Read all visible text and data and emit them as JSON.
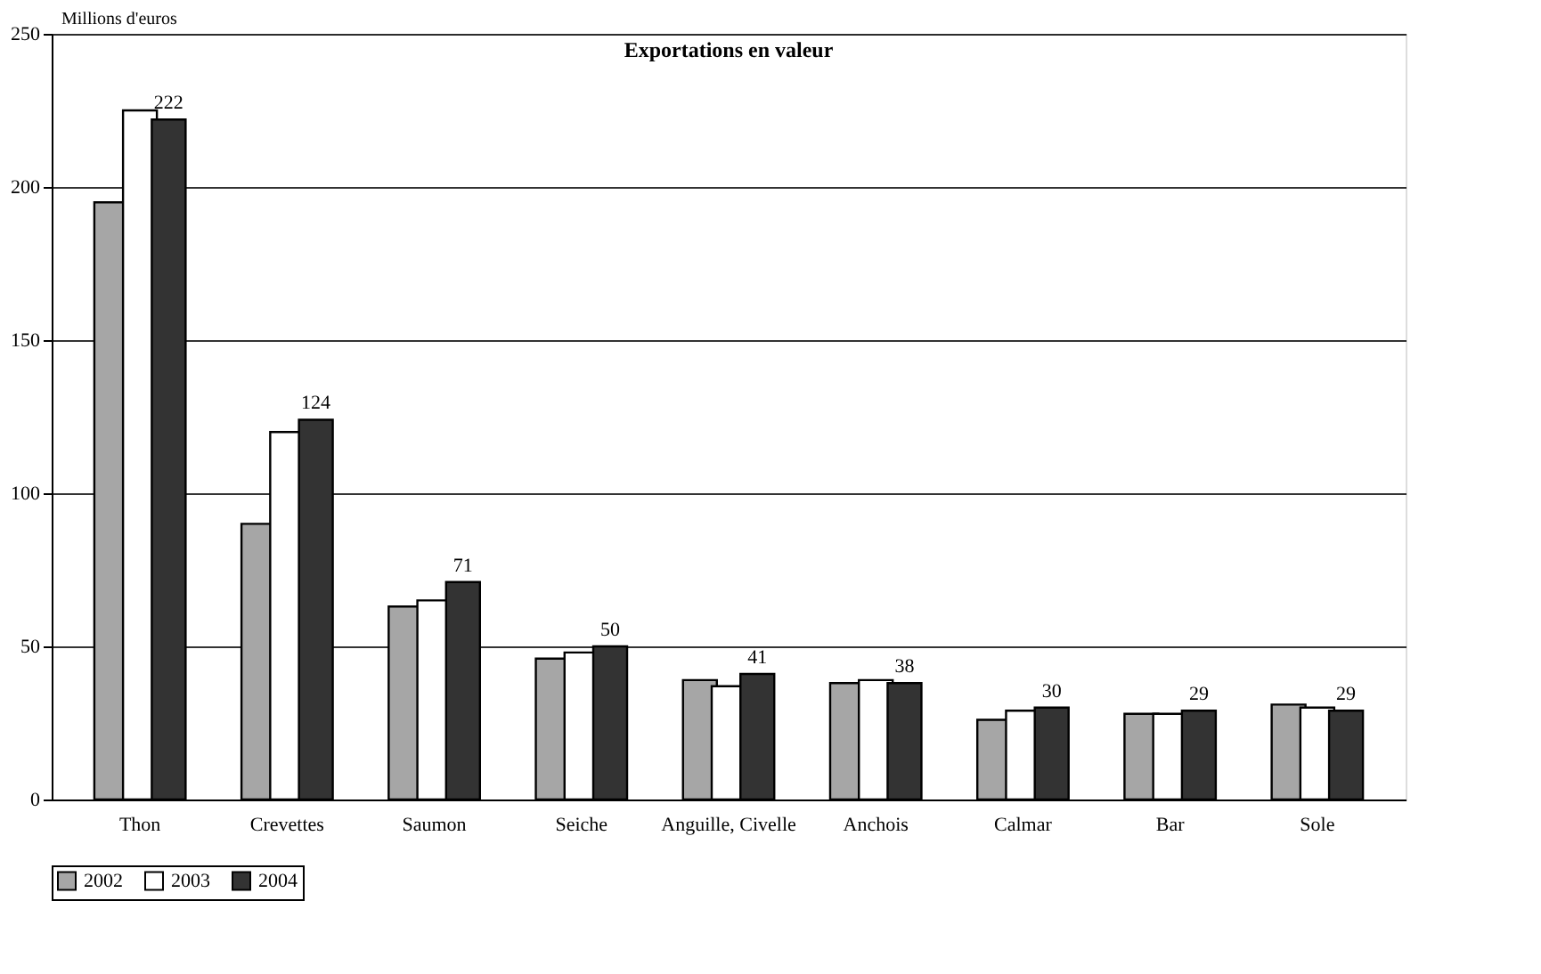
{
  "chart_data": {
    "type": "bar",
    "title": "Exportations en valeur",
    "ylabel": "Millions d'euros",
    "categories": [
      "Thon",
      "Crevettes",
      "Saumon",
      "Seiche",
      "Anguille, Civelle",
      "Anchois",
      "Calmar",
      "Bar",
      "Sole"
    ],
    "series": [
      {
        "name": "2002",
        "color": "#a6a6a6",
        "values": [
          195,
          90,
          63,
          46,
          39,
          38,
          26,
          28,
          31
        ]
      },
      {
        "name": "2003",
        "color": "#ffffff",
        "values": [
          225,
          120,
          65,
          48,
          37,
          39,
          29,
          28,
          30
        ]
      },
      {
        "name": "2004",
        "color": "#333333",
        "values": [
          222,
          124,
          71,
          50,
          41,
          38,
          30,
          29,
          29
        ],
        "value_labels": [
          "222",
          "124",
          "71",
          "50",
          "41",
          "38",
          "30",
          "29",
          "29"
        ]
      }
    ],
    "ylim": [
      0,
      250
    ],
    "yticks": [
      0,
      50,
      100,
      150,
      200,
      250
    ],
    "grid": "y",
    "legend": "bottom"
  }
}
